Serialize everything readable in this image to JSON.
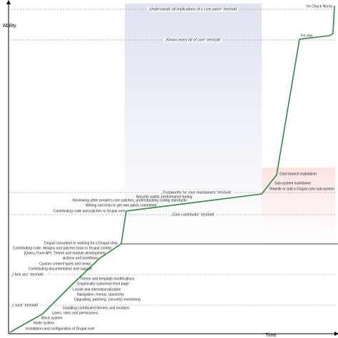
{
  "axes": {
    "y_label": "Ability",
    "x_label": "Time"
  },
  "thresholds": [
    {
      "label": "„Understands all implications of a core patch“ treshold"
    },
    {
      "label": "„Knows every bit of core“ treshold"
    },
    {
      "label": "„Trustworthy for core maintainers“ treshold"
    },
    {
      "label": "„Core contributor“ treshold"
    },
    {
      "label": "„I kick ass“ treshold"
    },
    {
      "label": "„I suck“ treshold"
    }
  ],
  "peaks": [
    "I'm Chuck Norris",
    "I'm cha"
  ],
  "milestones": [
    "Core branch maintainer",
    "Sub-system maintainer",
    "Rewrite or add a Drupal core sub-system",
    "Security audits, performance tuning",
    "Reviewing other people's core patches, understanding coding standards",
    "Writing unit tests to get own patch committed",
    "Contributing code and patches to Drupal core",
    "Drupal consultant or working for a Drupal shop",
    "Contributing code, designs and patches back to Drupal contrib",
    "jQuery, Form API, Theme and module development",
    "Actions and workflows",
    "Custom content types and views",
    "Contributing documentation and support",
    "Theme and template modifications",
    "Graphically customize front page",
    "Locale and internationalization",
    "Navigation, menus, taxonomy",
    "Upgrading, patching, (security) monitoring",
    "Installing contributed themes and modules",
    "Users, roles and permissions",
    "Block system",
    "Node system",
    "Installation and configuration of Drupal core"
  ]
}
